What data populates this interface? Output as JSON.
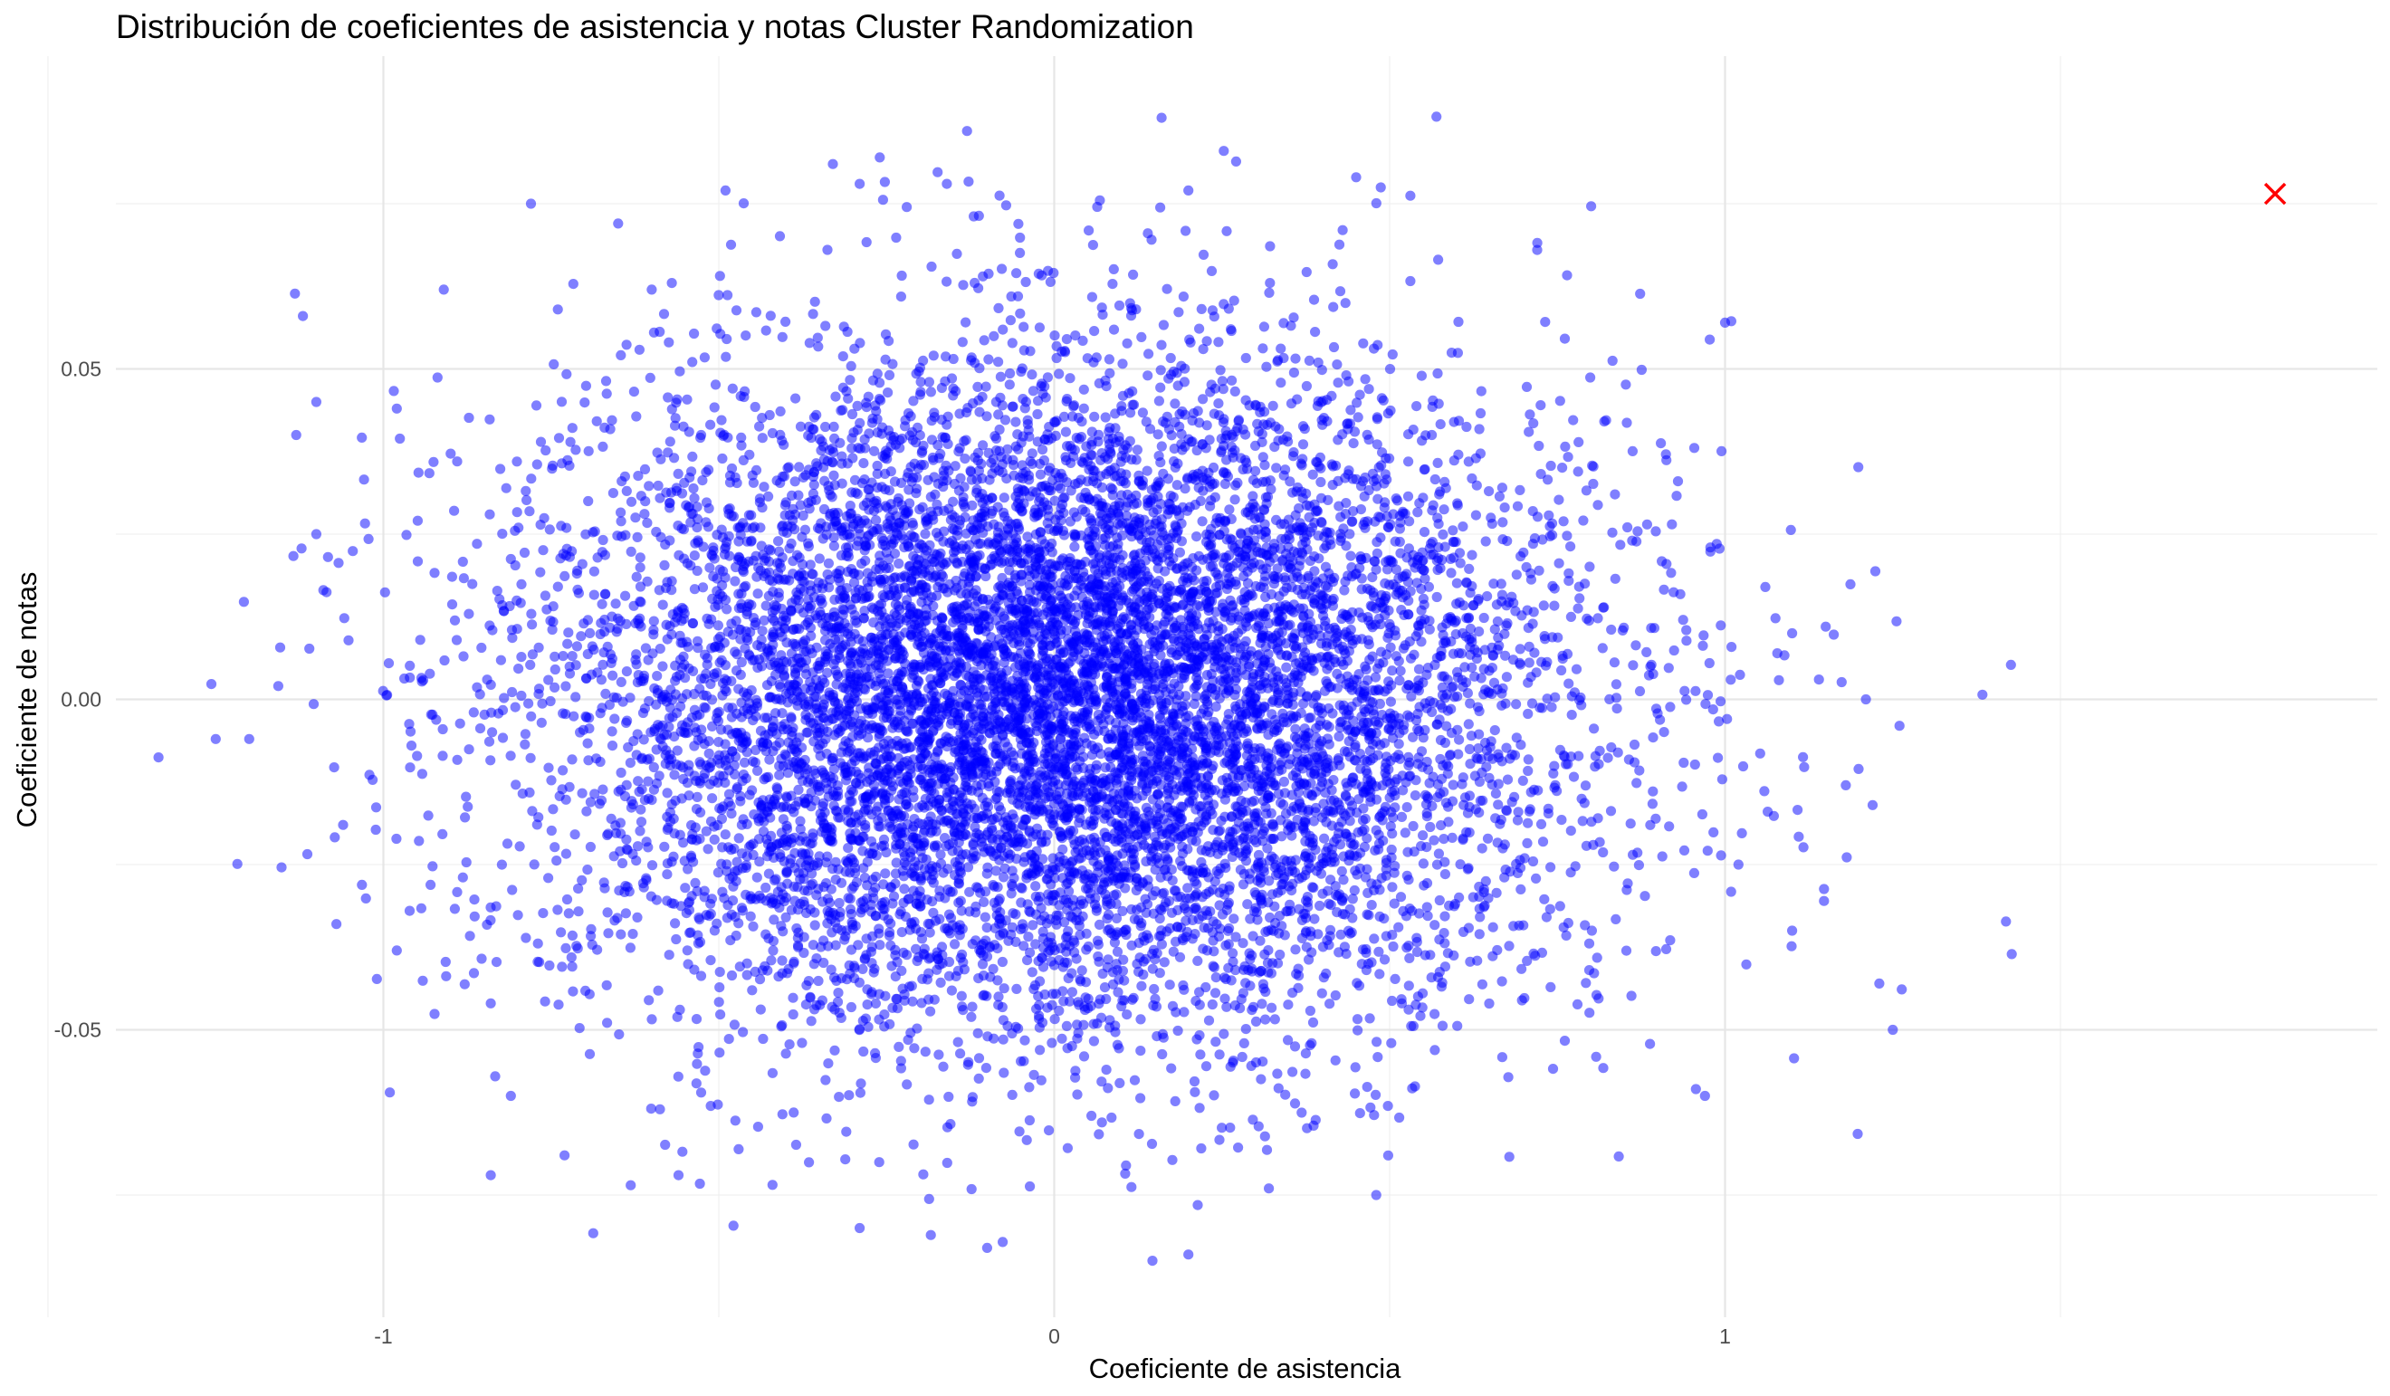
{
  "chart_data": {
    "type": "scatter",
    "title": "Distribución de coeficientes de asistencia y notas Cluster Randomization",
    "xlabel": "Coeficiente de asistencia",
    "ylabel": "Coeficiente de notas",
    "xlim": [
      -1.4,
      1.98
    ],
    "ylim": [
      -0.094,
      0.1
    ],
    "x_ticks": [
      -1,
      0,
      1
    ],
    "x_tick_labels": [
      "-1",
      "0",
      "1"
    ],
    "y_ticks": [
      -0.05,
      0.0,
      0.05
    ],
    "y_tick_labels": [
      "-0.05",
      "0.00",
      "0.05"
    ],
    "grid": true,
    "legend": "none",
    "point_color": "#0000ff",
    "point_alpha": 0.5,
    "marker_color": "#ff0000",
    "point_count": 10000,
    "distribution": {
      "x_mean": 0.0,
      "x_sd": 0.38,
      "y_mean": 0.0,
      "y_sd": 0.025
    },
    "outlier_points": [
      {
        "x": -1.25,
        "y": -0.006
      },
      {
        "x": -1.2,
        "y": -0.006
      },
      {
        "x": -1.13,
        "y": 0.04
      },
      {
        "x": -1.12,
        "y": 0.058
      },
      {
        "x": -1.1,
        "y": 0.045
      },
      {
        "x": -1.1,
        "y": 0.025
      },
      {
        "x": -1.07,
        "y": -0.034
      },
      {
        "x": -1.06,
        "y": -0.019
      },
      {
        "x": -0.98,
        "y": 0.044
      },
      {
        "x": -0.98,
        "y": -0.038
      },
      {
        "x": -0.91,
        "y": 0.062
      },
      {
        "x": -0.89,
        "y": 0.036
      },
      {
        "x": -0.84,
        "y": -0.046
      },
      {
        "x": -0.78,
        "y": 0.075
      },
      {
        "x": -0.74,
        "y": 0.059
      },
      {
        "x": -0.73,
        "y": -0.069
      },
      {
        "x": -0.65,
        "y": 0.072
      },
      {
        "x": -0.6,
        "y": 0.062
      },
      {
        "x": -0.57,
        "y": 0.063
      },
      {
        "x": -0.56,
        "y": -0.072
      },
      {
        "x": -0.49,
        "y": 0.077
      },
      {
        "x": -0.33,
        "y": 0.081
      },
      {
        "x": -0.29,
        "y": 0.078
      },
      {
        "x": -0.26,
        "y": 0.082
      },
      {
        "x": -0.29,
        "y": -0.08
      },
      {
        "x": -0.13,
        "y": 0.086
      },
      {
        "x": -0.16,
        "y": 0.078
      },
      {
        "x": -0.1,
        "y": -0.083
      },
      {
        "x": 0.16,
        "y": 0.088
      },
      {
        "x": 0.2,
        "y": 0.077
      },
      {
        "x": 0.2,
        "y": -0.084
      },
      {
        "x": 0.32,
        "y": -0.074
      },
      {
        "x": 0.45,
        "y": 0.079
      },
      {
        "x": 0.43,
        "y": 0.071
      },
      {
        "x": 0.48,
        "y": -0.075
      },
      {
        "x": 0.72,
        "y": 0.068
      },
      {
        "x": 1.0,
        "y": 0.057
      },
      {
        "x": 1.06,
        "y": 0.017
      },
      {
        "x": 1.1,
        "y": 0.01
      },
      {
        "x": 1.14,
        "y": 0.003
      },
      {
        "x": 1.18,
        "y": -0.013
      },
      {
        "x": 1.21,
        "y": 0.0
      },
      {
        "x": 1.22,
        "y": -0.016
      },
      {
        "x": 1.23,
        "y": -0.043
      },
      {
        "x": 1.25,
        "y": -0.05
      },
      {
        "x": 1.26,
        "y": -0.004
      },
      {
        "x": 1.15,
        "y": 0.011
      },
      {
        "x": 1.1,
        "y": -0.035
      },
      {
        "x": 1.02,
        "y": -0.025
      },
      {
        "x": 0.97,
        "y": -0.06
      },
      {
        "x": -0.81,
        "y": -0.06
      },
      {
        "x": -0.84,
        "y": -0.072
      }
    ],
    "highlight": {
      "x": 1.82,
      "y": 0.0765,
      "marker": "x"
    }
  }
}
